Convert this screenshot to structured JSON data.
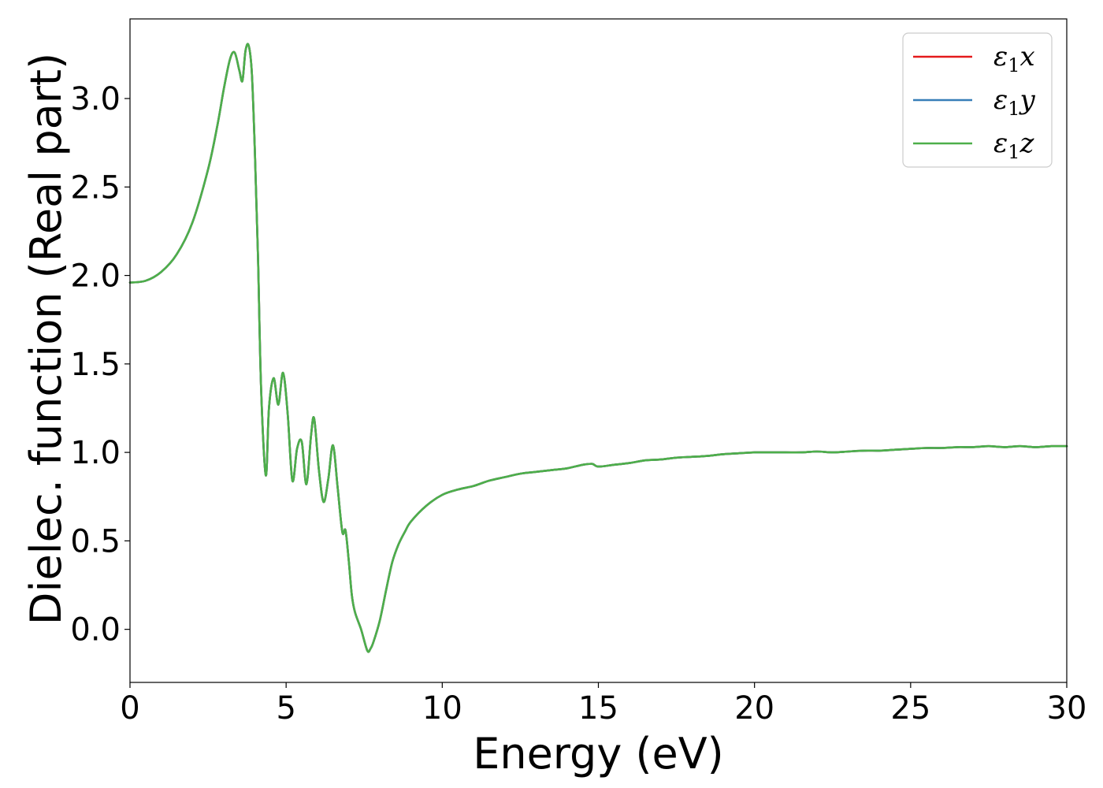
{
  "chart_data": {
    "type": "line",
    "xlabel": "Energy (eV)",
    "ylabel": "Dielec. function (Real part)",
    "xlim": [
      0,
      30
    ],
    "ylim": [
      -0.3,
      3.45
    ],
    "xticks": [
      0,
      5,
      10,
      15,
      20,
      25,
      30
    ],
    "xtick_labels": [
      "0",
      "5",
      "10",
      "15",
      "20",
      "25",
      "30"
    ],
    "yticks": [
      0.0,
      0.5,
      1.0,
      1.5,
      2.0,
      2.5,
      3.0
    ],
    "ytick_labels": [
      "0.0",
      "0.5",
      "1.0",
      "1.5",
      "2.0",
      "2.5",
      "3.0"
    ],
    "grid": false,
    "legend_position": "top-right",
    "series": [
      {
        "name": "ε₁x",
        "legend_base": "ε",
        "legend_sub": "1",
        "legend_tail": "x",
        "color": "#e41a1c",
        "shared_curve": true
      },
      {
        "name": "ε₁y",
        "legend_base": "ε",
        "legend_sub": "1",
        "legend_tail": "y",
        "color": "#377eb8",
        "shared_curve": true
      },
      {
        "name": "ε₁z",
        "legend_base": "ε",
        "legend_sub": "1",
        "legend_tail": "z",
        "color": "#4daf4a",
        "shared_curve": true
      }
    ],
    "curve": {
      "x": [
        0,
        0.5,
        1.0,
        1.5,
        2.0,
        2.5,
        2.8,
        3.0,
        3.2,
        3.35,
        3.5,
        3.6,
        3.7,
        3.8,
        3.9,
        4.0,
        4.1,
        4.2,
        4.35,
        4.45,
        4.6,
        4.75,
        4.9,
        5.05,
        5.2,
        5.35,
        5.5,
        5.65,
        5.8,
        5.9,
        6.05,
        6.2,
        6.35,
        6.5,
        6.65,
        6.8,
        6.9,
        7.0,
        7.1,
        7.2,
        7.4,
        7.6,
        7.7,
        7.8,
        8.0,
        8.2,
        8.4,
        8.6,
        8.8,
        9.0,
        9.5,
        10.0,
        10.5,
        11.0,
        11.5,
        12.0,
        12.5,
        13.0,
        13.5,
        14.0,
        14.5,
        14.8,
        15.0,
        15.5,
        16.0,
        16.5,
        17.0,
        17.5,
        18.0,
        18.5,
        19.0,
        19.5,
        20.0,
        20.5,
        21.0,
        21.5,
        22.0,
        22.5,
        23.0,
        23.5,
        24.0,
        24.5,
        25.0,
        25.5,
        26.0,
        26.5,
        27.0,
        27.5,
        28.0,
        28.5,
        29.0,
        29.5,
        30.0
      ],
      "y": [
        1.96,
        1.97,
        2.02,
        2.12,
        2.3,
        2.6,
        2.85,
        3.05,
        3.22,
        3.26,
        3.16,
        3.1,
        3.27,
        3.3,
        3.15,
        2.7,
        2.1,
        1.35,
        0.87,
        1.25,
        1.42,
        1.27,
        1.45,
        1.22,
        0.84,
        1.02,
        1.06,
        0.82,
        1.1,
        1.19,
        0.9,
        0.72,
        0.85,
        1.04,
        0.8,
        0.55,
        0.56,
        0.4,
        0.2,
        0.1,
        0.0,
        -0.12,
        -0.11,
        -0.07,
        0.05,
        0.22,
        0.38,
        0.48,
        0.55,
        0.61,
        0.7,
        0.76,
        0.79,
        0.81,
        0.84,
        0.86,
        0.88,
        0.89,
        0.9,
        0.91,
        0.93,
        0.935,
        0.92,
        0.93,
        0.94,
        0.955,
        0.96,
        0.97,
        0.975,
        0.98,
        0.99,
        0.995,
        1.0,
        1.0,
        1.0,
        1.0,
        1.005,
        1.0,
        1.005,
        1.01,
        1.01,
        1.015,
        1.02,
        1.025,
        1.025,
        1.03,
        1.03,
        1.035,
        1.03,
        1.035,
        1.03,
        1.035,
        1.035
      ]
    }
  }
}
